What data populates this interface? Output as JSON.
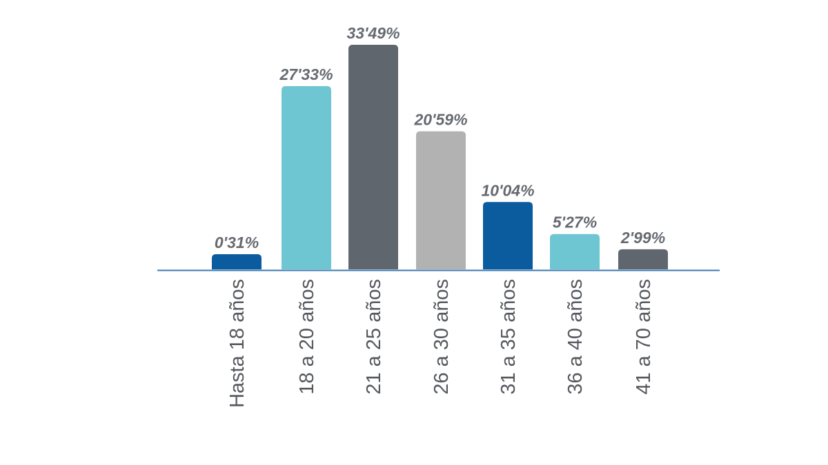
{
  "chart_data": {
    "type": "bar",
    "title": "",
    "xlabel": "",
    "ylabel": "",
    "categories": [
      "Hasta 18 años",
      "18 a 20 años",
      "21 a 25 años",
      "26 a 30 años",
      "31 a 35 años",
      "36 a 40 años",
      "41 a 70 años"
    ],
    "values": [
      0.31,
      27.33,
      33.49,
      20.59,
      10.04,
      5.27,
      2.99
    ],
    "data_labels": [
      "0'31%",
      "27'33%",
      "33'49%",
      "20'59%",
      "10'04%",
      "5'27%",
      "2'99%"
    ],
    "unit": "%",
    "ylim": [
      0,
      33.49
    ],
    "grid": false,
    "legend": "none",
    "bar_colors": [
      "#0b5c9e",
      "#6fc6d3",
      "#5f666e",
      "#b2b2b2",
      "#0b5c9e",
      "#6fc6d3",
      "#5f666e"
    ],
    "axis_color": "#3a7ab0",
    "label_color": "#666a70"
  }
}
